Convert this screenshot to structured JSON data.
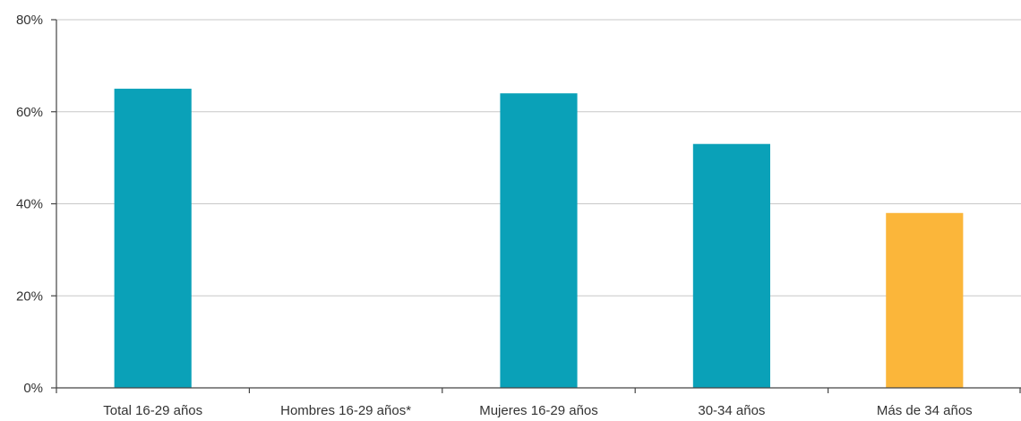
{
  "chart_data": {
    "type": "bar",
    "title": "",
    "xlabel": "",
    "ylabel": "",
    "categories": [
      "Total 16-29 años",
      "Hombres 16-29 años*",
      "Mujeres 16-29 años",
      "30-34 años",
      "Más de 34 años"
    ],
    "values": [
      65,
      null,
      64,
      53,
      38
    ],
    "bar_colors": [
      "#0aa1b8",
      "#0aa1b8",
      "#0aa1b8",
      "#0aa1b8",
      "#fbb63a"
    ],
    "ylim": [
      0,
      80
    ],
    "yticks": [
      0,
      20,
      40,
      60,
      80
    ],
    "ytick_labels": [
      "0%",
      "20%",
      "40%",
      "60%",
      "80%"
    ],
    "grid": true,
    "legend": "none"
  }
}
